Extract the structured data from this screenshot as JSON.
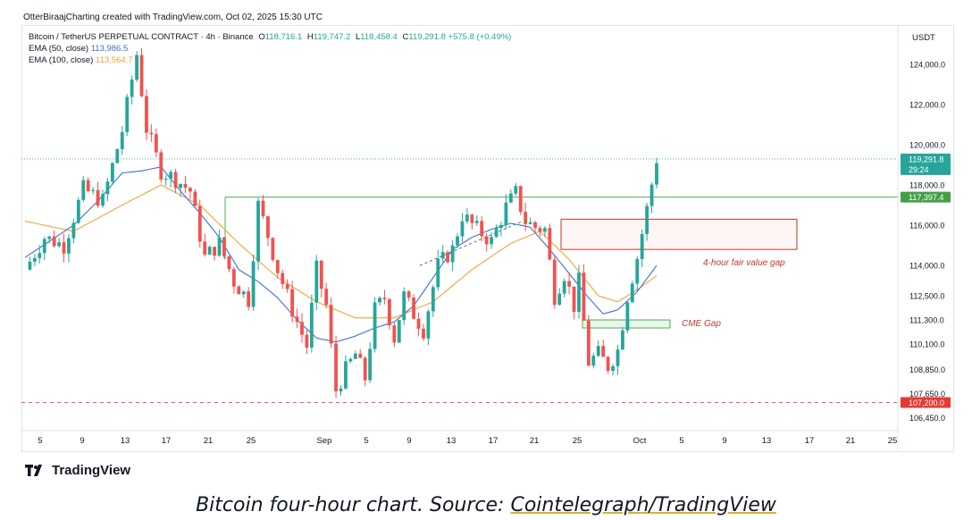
{
  "header": {
    "attribution": "OtterBiraajCharting created with TradingView.com, Oct 02, 2025 15:30 UTC"
  },
  "legend": {
    "symbol": "Bitcoin / TetherUS PERPETUAL CONTRACT · 4h · Binance",
    "o_label": "O",
    "o": "118,716.1",
    "h_label": "H",
    "h": "119,747.2",
    "l_label": "L",
    "l": "118,458.4",
    "c_label": "C",
    "c": "119,291.8",
    "change": "+575.8 (+0.49%)",
    "ema50_label": "EMA (50, close)",
    "ema50_value": "113,986.5",
    "ema100_label": "EMA (100, close)",
    "ema100_value": "113,564.7"
  },
  "currency": "USDT",
  "colors": {
    "up": "#26a69a",
    "down": "#ef5350",
    "ema50": "#3d6fd6",
    "ema100": "#f2a33a",
    "resistance": "#4caf50",
    "support": "#e06060",
    "price_label": "#26a69a"
  },
  "brand": {
    "name": "TradingView",
    "icon": "tradingview-logo-icon"
  },
  "caption": {
    "prefix": "Bitcoin four-hour chart. Source: ",
    "source": "Cointelegraph/TradingView"
  },
  "chart_data": {
    "type": "candlestick",
    "x_tick_labels": [
      "5",
      "9",
      "13",
      "17",
      "21",
      "25",
      "Sep",
      "5",
      "9",
      "13",
      "17",
      "21",
      "25",
      "Oct",
      "5",
      "9",
      "13",
      "17",
      "21",
      "25"
    ],
    "y_tick_labels": [
      "124,000.0",
      "122,000.0",
      "120,000.0",
      "118,000.0",
      "116,000.0",
      "114,000.0",
      "112,500.0",
      "111,300.0",
      "110,100.0",
      "108,850.0",
      "107,650.0",
      "106,450.0"
    ],
    "y_ticks": [
      124000,
      122000,
      120000,
      118000,
      116000,
      114000,
      112500,
      111300,
      110100,
      108850,
      107650,
      106450
    ],
    "ylim": [
      105800,
      125900
    ],
    "last_price": "119,291.8",
    "countdown": "29:24",
    "resistance": {
      "value": 117397.4,
      "label": "117,397.4"
    },
    "support": {
      "value": 107200.0,
      "label": "107,200.0"
    },
    "annotations": {
      "fvg_label": "4-hour fair value gap",
      "fvg_range": [
        114800,
        116300
      ],
      "cme_label": "CME Gap",
      "cme_range": [
        110900,
        111300
      ]
    },
    "close_path": [
      [
        0,
        113800
      ],
      [
        4,
        115400
      ],
      [
        8,
        115000
      ],
      [
        12,
        117800
      ],
      [
        16,
        117200
      ],
      [
        20,
        120700
      ],
      [
        23,
        124500
      ],
      [
        25,
        120800
      ],
      [
        28,
        118700
      ],
      [
        31,
        118300
      ],
      [
        34,
        117700
      ],
      [
        37,
        114400
      ],
      [
        40,
        115100
      ],
      [
        43,
        113200
      ],
      [
        46,
        112300
      ],
      [
        48,
        117000
      ],
      [
        50,
        115500
      ],
      [
        52,
        113800
      ],
      [
        55,
        111800
      ],
      [
        58,
        110000
      ],
      [
        60,
        113800
      ],
      [
        62,
        112000
      ],
      [
        64,
        107800
      ],
      [
        66,
        108800
      ],
      [
        68,
        109600
      ],
      [
        70,
        108400
      ],
      [
        72,
        111800
      ],
      [
        74,
        112400
      ],
      [
        76,
        110400
      ],
      [
        78,
        112500
      ],
      [
        80,
        111600
      ],
      [
        82,
        110800
      ],
      [
        85,
        114000
      ],
      [
        88,
        114800
      ],
      [
        90,
        116500
      ],
      [
        93,
        115800
      ],
      [
        96,
        115200
      ],
      [
        99,
        116900
      ],
      [
        101,
        117600
      ],
      [
        103,
        116200
      ],
      [
        105,
        115900
      ],
      [
        107,
        115800
      ],
      [
        109,
        112500
      ],
      [
        111,
        113600
      ],
      [
        113,
        112000
      ],
      [
        114,
        113200
      ],
      [
        116,
        109200
      ],
      [
        118,
        109600
      ],
      [
        120,
        109000
      ],
      [
        122,
        109800
      ],
      [
        124,
        112500
      ],
      [
        126,
        114400
      ],
      [
        128,
        116800
      ],
      [
        130,
        119300
      ]
    ],
    "ema50": [
      [
        0,
        114400
      ],
      [
        5,
        115200
      ],
      [
        10,
        116000
      ],
      [
        15,
        117200
      ],
      [
        20,
        118600
      ],
      [
        24,
        118700
      ],
      [
        28,
        118900
      ],
      [
        32,
        117700
      ],
      [
        36,
        116600
      ],
      [
        40,
        115400
      ],
      [
        44,
        113800
      ],
      [
        48,
        113200
      ],
      [
        52,
        112400
      ],
      [
        56,
        111300
      ],
      [
        60,
        110400
      ],
      [
        64,
        110200
      ],
      [
        68,
        110500
      ],
      [
        72,
        110900
      ],
      [
        76,
        111200
      ],
      [
        80,
        112000
      ],
      [
        84,
        113400
      ],
      [
        88,
        114800
      ],
      [
        92,
        115400
      ],
      [
        96,
        115800
      ],
      [
        100,
        116100
      ],
      [
        104,
        115900
      ],
      [
        108,
        114800
      ],
      [
        112,
        113600
      ],
      [
        116,
        112400
      ],
      [
        119,
        111600
      ],
      [
        122,
        111800
      ],
      [
        126,
        112700
      ],
      [
        130,
        114000
      ]
    ],
    "ema100": [
      [
        0,
        116200
      ],
      [
        10,
        115700
      ],
      [
        20,
        117000
      ],
      [
        28,
        118000
      ],
      [
        36,
        117000
      ],
      [
        44,
        115100
      ],
      [
        52,
        113400
      ],
      [
        60,
        112200
      ],
      [
        68,
        111400
      ],
      [
        76,
        111400
      ],
      [
        84,
        112200
      ],
      [
        92,
        113800
      ],
      [
        100,
        115100
      ],
      [
        106,
        115700
      ],
      [
        112,
        114300
      ],
      [
        118,
        112500
      ],
      [
        122,
        112200
      ],
      [
        126,
        112800
      ],
      [
        130,
        113500
      ]
    ]
  }
}
